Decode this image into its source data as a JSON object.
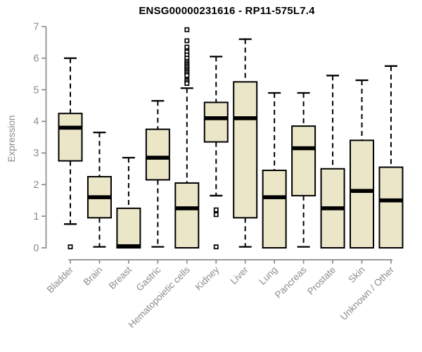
{
  "chart_data": {
    "type": "boxplot",
    "title": "ENSG00000231616 - RP11-575L7.4",
    "ylabel": "Expression",
    "xlabel": "",
    "ylim": [
      0,
      7
    ],
    "y_ticks": [
      0,
      1,
      2,
      3,
      4,
      5,
      6,
      7
    ],
    "grid": false,
    "legend": null,
    "categories": [
      "Bladder",
      "Brain",
      "Breast",
      "Gastric",
      "Hematopoietic cells",
      "Kidney",
      "Liver",
      "Lung",
      "Pancreas",
      "Prostate",
      "Skin",
      "Unknown / Other"
    ],
    "series": [
      {
        "name": "Bladder",
        "whisker_low": 0.75,
        "q1": 2.75,
        "median": 3.8,
        "q3": 4.25,
        "whisker_high": 6.0,
        "outliers": [
          0.03
        ]
      },
      {
        "name": "Brain",
        "whisker_low": 0.03,
        "q1": 0.95,
        "median": 1.6,
        "q3": 2.25,
        "whisker_high": 3.65,
        "outliers": []
      },
      {
        "name": "Breast",
        "whisker_low": 0.0,
        "q1": 0.0,
        "median": 0.05,
        "q3": 1.25,
        "whisker_high": 2.85,
        "outliers": []
      },
      {
        "name": "Gastric",
        "whisker_low": 0.03,
        "q1": 2.15,
        "median": 2.85,
        "q3": 3.75,
        "whisker_high": 4.65,
        "outliers": []
      },
      {
        "name": "Hematopoietic cells",
        "whisker_low": 0.0,
        "q1": 0.0,
        "median": 1.25,
        "q3": 2.05,
        "whisker_high": 5.05,
        "outliers": [
          6.9,
          6.55,
          6.35,
          6.2,
          6.1,
          6.0,
          5.9,
          5.85,
          5.8,
          5.75,
          5.7,
          5.65,
          5.6,
          5.55,
          5.5,
          5.45,
          5.3,
          5.25,
          5.2
        ]
      },
      {
        "name": "Kidney",
        "whisker_low": 1.65,
        "q1": 3.35,
        "median": 4.1,
        "q3": 4.6,
        "whisker_high": 6.05,
        "outliers": [
          1.2,
          1.05,
          0.03
        ]
      },
      {
        "name": "Liver",
        "whisker_low": 0.03,
        "q1": 0.95,
        "median": 4.1,
        "q3": 5.25,
        "whisker_high": 6.6,
        "outliers": []
      },
      {
        "name": "Lung",
        "whisker_low": 0.0,
        "q1": 0.0,
        "median": 1.6,
        "q3": 2.45,
        "whisker_high": 4.9,
        "outliers": []
      },
      {
        "name": "Pancreas",
        "whisker_low": 0.03,
        "q1": 1.65,
        "median": 3.15,
        "q3": 3.85,
        "whisker_high": 4.9,
        "outliers": []
      },
      {
        "name": "Prostate",
        "whisker_low": 0.0,
        "q1": 0.0,
        "median": 1.25,
        "q3": 2.5,
        "whisker_high": 5.45,
        "outliers": []
      },
      {
        "name": "Skin",
        "whisker_low": 0.0,
        "q1": 0.0,
        "median": 1.8,
        "q3": 3.4,
        "whisker_high": 5.3,
        "outliers": []
      },
      {
        "name": "Unknown / Other",
        "whisker_low": 0.0,
        "q1": 0.0,
        "median": 1.5,
        "q3": 2.55,
        "whisker_high": 5.75,
        "outliers": []
      }
    ],
    "colors": {
      "box_fill": "#EBE6C8",
      "box_border": "#000000",
      "median": "#000000",
      "whisker": "#000000",
      "outlier_fill": "#FFFFFF",
      "axis": "#8C8C8C",
      "tick_label": "#8C8C8C",
      "title": "#000000",
      "background": "#FFFFFF"
    }
  }
}
